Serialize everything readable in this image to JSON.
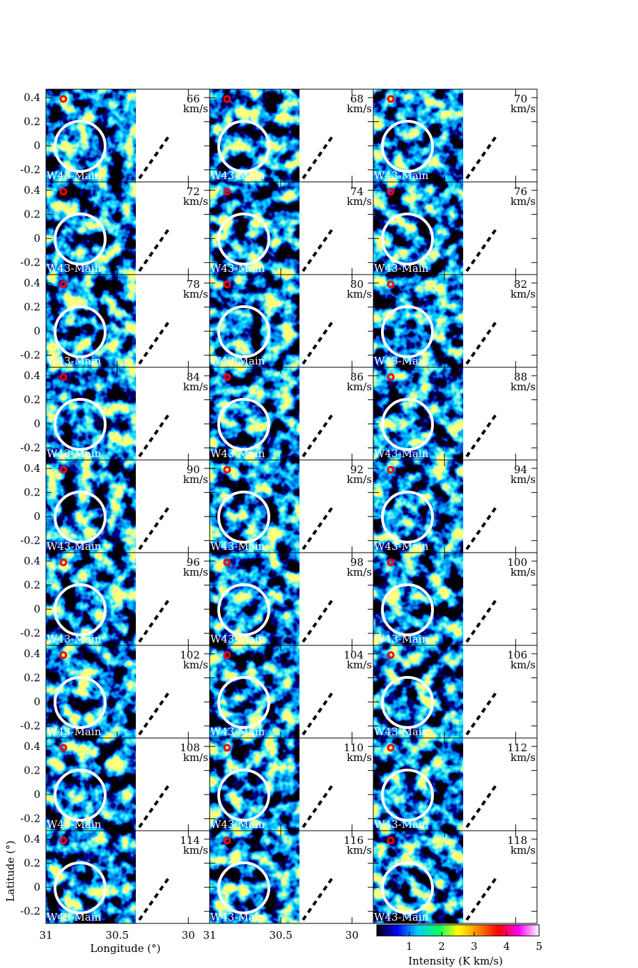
{
  "chart_data": {
    "type": "channel-map",
    "panels": [
      {
        "velocity": 66,
        "unit": "km/s",
        "region": "W43-Main"
      },
      {
        "velocity": 68,
        "unit": "km/s",
        "region": "W43-Main"
      },
      {
        "velocity": 70,
        "unit": "km/s",
        "region": "W43-Main"
      },
      {
        "velocity": 72,
        "unit": "km/s",
        "region": "W43-Main"
      },
      {
        "velocity": 74,
        "unit": "km/s",
        "region": "W43-Main"
      },
      {
        "velocity": 76,
        "unit": "km/s",
        "region": "W43-Main"
      },
      {
        "velocity": 78,
        "unit": "km/s",
        "region": "W43-Main"
      },
      {
        "velocity": 80,
        "unit": "km/s",
        "region": "W43-Main"
      },
      {
        "velocity": 82,
        "unit": "km/s",
        "region": "W43-Main"
      },
      {
        "velocity": 84,
        "unit": "km/s",
        "region": "W43-Main"
      },
      {
        "velocity": 86,
        "unit": "km/s",
        "region": "W43-Main"
      },
      {
        "velocity": 88,
        "unit": "km/s",
        "region": "W43-Main"
      },
      {
        "velocity": 90,
        "unit": "km/s",
        "region": "W43-Main"
      },
      {
        "velocity": 92,
        "unit": "km/s",
        "region": "W43-Main"
      },
      {
        "velocity": 94,
        "unit": "km/s",
        "region": "W43-Main"
      },
      {
        "velocity": 96,
        "unit": "km/s",
        "region": "W43-Main"
      },
      {
        "velocity": 98,
        "unit": "km/s",
        "region": "W43-Main"
      },
      {
        "velocity": 100,
        "unit": "km/s",
        "region": "W43-Main"
      },
      {
        "velocity": 102,
        "unit": "km/s",
        "region": "W43-Main"
      },
      {
        "velocity": 104,
        "unit": "km/s",
        "region": "W43-Main"
      },
      {
        "velocity": 106,
        "unit": "km/s",
        "region": "W43-Main"
      },
      {
        "velocity": 108,
        "unit": "km/s",
        "region": "W43-Main"
      },
      {
        "velocity": 110,
        "unit": "km/s",
        "region": "W43-Main"
      },
      {
        "velocity": 112,
        "unit": "km/s",
        "region": "W43-Main"
      },
      {
        "velocity": 114,
        "unit": "km/s",
        "region": "W43-Main"
      },
      {
        "velocity": 116,
        "unit": "km/s",
        "region": "W43-Main"
      },
      {
        "velocity": 118,
        "unit": "km/s",
        "region": "W43-Main"
      }
    ],
    "x_label": "Longitude (°)",
    "y_label": "Latitude (°)",
    "xlim": [
      31,
      29.85
    ],
    "xticks": [
      31,
      30.5,
      30
    ],
    "ylim": [
      -0.3,
      0.47
    ],
    "yticks": [
      0.4,
      0.2,
      0,
      -0.2
    ],
    "colorbar": {
      "label": "Intensity (K km/s)",
      "lim": [
        0,
        5
      ],
      "ticks": [
        1,
        2,
        3,
        4,
        5
      ],
      "colors": [
        "#000000",
        "#0000ff",
        "#00ccff",
        "#00ff66",
        "#ffff00",
        "#ff8800",
        "#ff0000",
        "#ff00ff",
        "#ffffff"
      ]
    }
  }
}
